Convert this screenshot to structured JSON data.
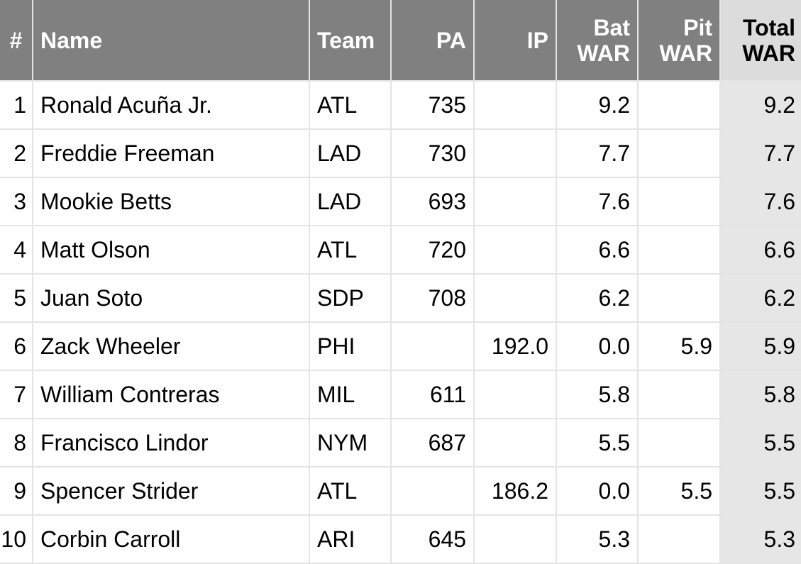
{
  "table": {
    "header": [
      "#",
      "Name",
      "Team",
      "PA",
      "IP",
      "Bat WAR",
      "Pit WAR",
      "Total WAR"
    ],
    "rows": [
      [
        "1",
        "Ronald Acuña Jr.",
        "ATL",
        "735",
        null,
        "9.2",
        null,
        "9.2"
      ],
      [
        "2",
        "Freddie Freeman",
        "LAD",
        "730",
        null,
        "7.7",
        null,
        "7.7"
      ],
      [
        "3",
        "Mookie Betts",
        "LAD",
        "693",
        null,
        "7.6",
        null,
        "7.6"
      ],
      [
        "4",
        "Matt Olson",
        "ATL",
        "720",
        null,
        "6.6",
        null,
        "6.6"
      ],
      [
        "5",
        "Juan Soto",
        "SDP",
        "708",
        null,
        "6.2",
        null,
        "6.2"
      ],
      [
        "6",
        "Zack Wheeler",
        "PHI",
        null,
        "192.0",
        "0.0",
        "5.9",
        "5.9"
      ],
      [
        "7",
        "William Contreras",
        "MIL",
        "611",
        null,
        "5.8",
        null,
        "5.8"
      ],
      [
        "8",
        "Francisco Lindor",
        "NYM",
        "687",
        null,
        "5.5",
        null,
        "5.5"
      ],
      [
        "9",
        "Spencer Strider",
        "ATL",
        null,
        "186.2",
        "0.0",
        "5.5",
        "5.5"
      ],
      [
        "10",
        "Corbin Carroll",
        "ARI",
        "645",
        null,
        "5.3",
        null,
        "5.3"
      ]
    ]
  }
}
